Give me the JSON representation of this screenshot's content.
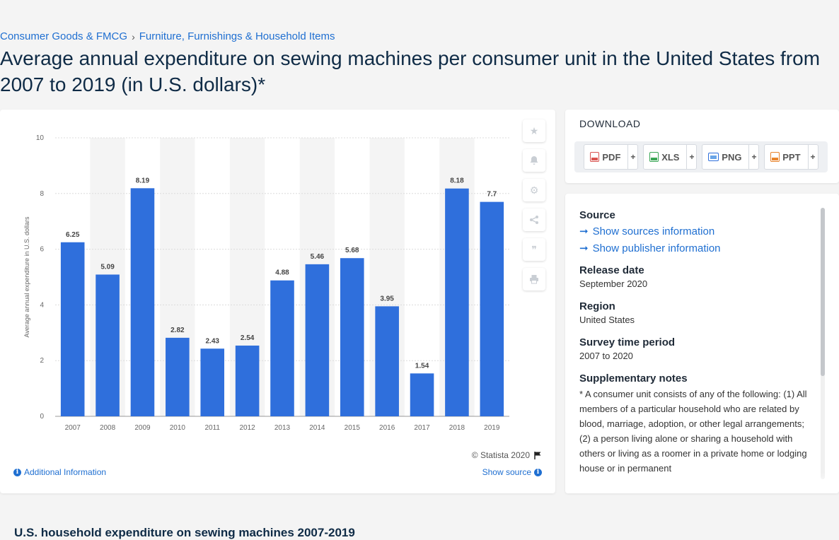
{
  "breadcrumb": {
    "items": [
      "Consumer Goods & FMCG",
      "Furniture, Furnishings & Household Items"
    ],
    "separator": "›"
  },
  "page_title": "Average annual expenditure on sewing machines per consumer unit in the United States from 2007 to 2019 (in U.S. dollars)*",
  "chart_data": {
    "type": "bar",
    "title": "",
    "xlabel": "",
    "ylabel": "Average annual expenditure in U.S. dollars",
    "categories": [
      "2007",
      "2008",
      "2009",
      "2010",
      "2011",
      "2012",
      "2013",
      "2014",
      "2015",
      "2016",
      "2017",
      "2018",
      "2019"
    ],
    "values": [
      6.25,
      5.09,
      8.19,
      2.82,
      2.43,
      2.54,
      4.88,
      5.46,
      5.68,
      3.95,
      1.54,
      8.18,
      7.7
    ],
    "value_labels": [
      "6.25",
      "5.09",
      "8.19",
      "2.82",
      "2.43",
      "2.54",
      "4.88",
      "5.46",
      "5.68",
      "3.95",
      "1.54",
      "8.18",
      "7.7"
    ],
    "ylim": [
      0,
      10
    ],
    "yticks": [
      "0",
      "2",
      "4",
      "6",
      "8",
      "10"
    ],
    "bar_color": "#2f6fdc",
    "band_color": "#f4f4f4",
    "grid": true,
    "legend": "none"
  },
  "chart_card": {
    "credit": "© Statista 2020",
    "additional_info": "Additional Information",
    "show_source": "Show source",
    "tools": [
      "star-icon",
      "bell-icon",
      "gear-icon",
      "share-icon",
      "quote-icon",
      "print-icon"
    ]
  },
  "download": {
    "title": "DOWNLOAD",
    "buttons": [
      {
        "label": "PDF",
        "plus": "+",
        "color": "#d9534f"
      },
      {
        "label": "XLS",
        "plus": "+",
        "color": "#3aa655"
      },
      {
        "label": "PNG",
        "plus": "+",
        "color": "#2f6fdc"
      },
      {
        "label": "PPT",
        "plus": "+",
        "color": "#e8832a"
      }
    ]
  },
  "info": {
    "source_heading": "Source",
    "show_sources": "Show sources information",
    "show_publisher": "Show publisher information",
    "release_heading": "Release date",
    "release_value": "September 2020",
    "region_heading": "Region",
    "region_value": "United States",
    "survey_heading": "Survey time period",
    "survey_value": "2007 to 2020",
    "notes_heading": "Supplementary notes",
    "notes_value": "* A consumer unit consists of any of the following: (1) All members of a particular household who are related by blood, marriage, adoption, or other legal arrangements; (2) a person living alone or sharing a household with others or living as a roomer in a private home or lodging house or in permanent"
  },
  "bottom_title": "U.S. household expenditure on sewing machines 2007-2019"
}
